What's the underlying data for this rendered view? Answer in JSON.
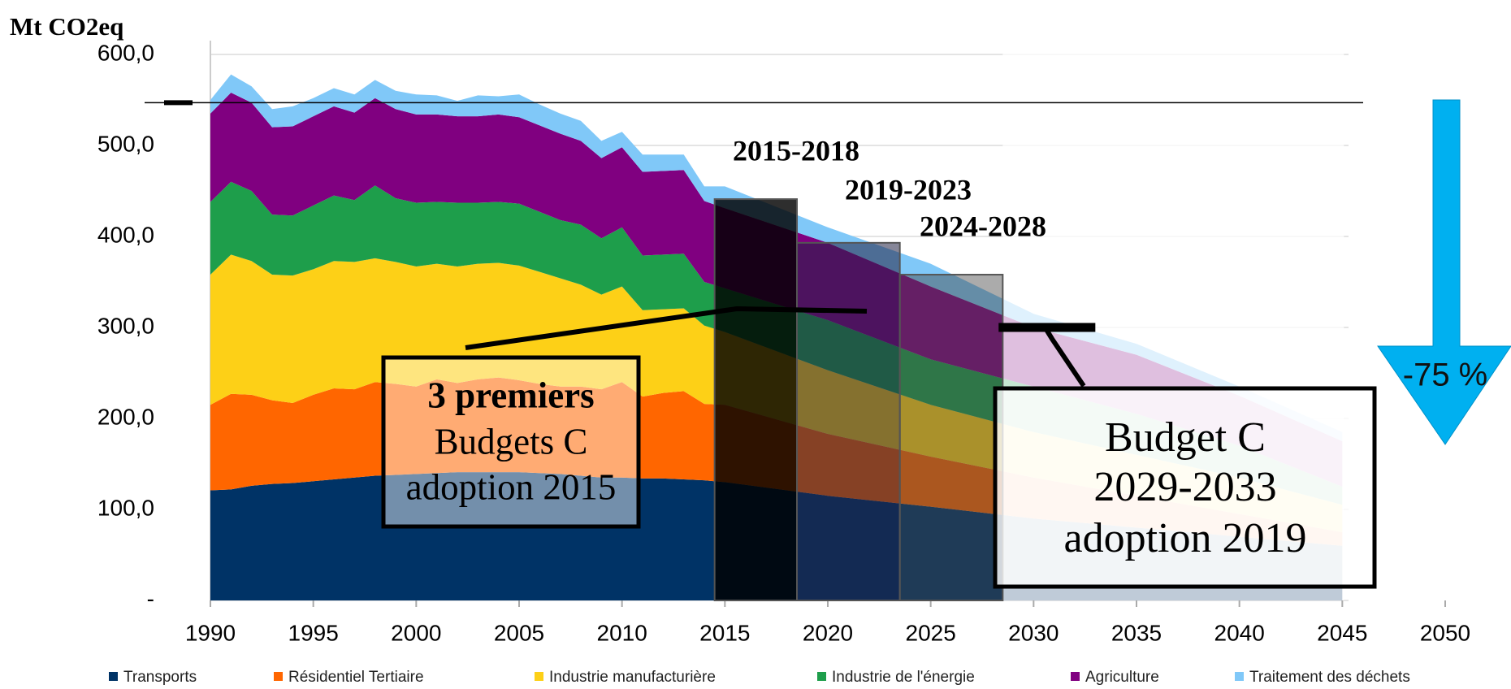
{
  "chart_data": {
    "type": "stacked-area",
    "ylabel": "Mt CO2eq",
    "x": [
      1990,
      1991,
      1992,
      1993,
      1994,
      1995,
      1996,
      1997,
      1998,
      1999,
      2000,
      2001,
      2002,
      2003,
      2004,
      2005,
      2006,
      2007,
      2008,
      2009,
      2010,
      2011,
      2012,
      2013,
      2014,
      2015,
      2020,
      2025,
      2030,
      2035,
      2040,
      2045
    ],
    "series": [
      {
        "name": "Transports",
        "color": "#003366",
        "values": [
          121,
          122,
          126,
          128,
          129,
          131,
          133,
          135,
          137,
          138,
          139,
          140,
          141,
          141,
          141,
          141,
          140,
          139,
          137,
          135,
          135,
          134,
          134,
          133,
          132,
          130,
          115,
          103,
          90,
          80,
          70,
          60
        ]
      },
      {
        "name": "Résidentiel Tertiaire",
        "color": "#ff6600",
        "values": [
          94,
          105,
          100,
          92,
          88,
          95,
          100,
          97,
          103,
          100,
          96,
          103,
          98,
          102,
          104,
          101,
          98,
          96,
          98,
          97,
          105,
          90,
          94,
          97,
          84,
          85,
          68,
          55,
          45,
          35,
          25,
          15
        ]
      },
      {
        "name": "Industrie manufacturière",
        "color": "#fdd017",
        "values": [
          143,
          153,
          147,
          138,
          140,
          138,
          140,
          140,
          136,
          134,
          132,
          127,
          128,
          127,
          126,
          126,
          123,
          119,
          112,
          104,
          105,
          95,
          92,
          91,
          86,
          80,
          70,
          57,
          50,
          45,
          40,
          30
        ]
      },
      {
        "name": "Industrie de l'énergie",
        "color": "#1e9e4b",
        "values": [
          80,
          80,
          77,
          66,
          66,
          70,
          72,
          68,
          80,
          70,
          70,
          68,
          70,
          67,
          67,
          68,
          66,
          64,
          66,
          62,
          65,
          60,
          60,
          60,
          48,
          48,
          55,
          50,
          50,
          45,
          35,
          20
        ]
      },
      {
        "name": "Agriculture",
        "color": "#800080",
        "values": [
          97,
          98,
          97,
          96,
          98,
          98,
          98,
          96,
          96,
          98,
          97,
          96,
          95,
          95,
          96,
          95,
          95,
          95,
          92,
          88,
          88,
          92,
          92,
          92,
          89,
          88,
          85,
          80,
          65,
          65,
          55,
          50
        ]
      },
      {
        "name": "Traitement des déchets",
        "color": "#80c8f8",
        "values": [
          15,
          20,
          18,
          20,
          22,
          20,
          20,
          20,
          20,
          20,
          22,
          21,
          17,
          23,
          20,
          25,
          23,
          22,
          22,
          19,
          17,
          19,
          18,
          17,
          16,
          24,
          17,
          25,
          15,
          12,
          10,
          10
        ]
      }
    ],
    "xlim": [
      1990,
      2050
    ],
    "xticks": [
      1990,
      1995,
      2000,
      2005,
      2010,
      2015,
      2020,
      2025,
      2030,
      2035,
      2040,
      2045,
      2050
    ],
    "ylim": [
      0,
      600
    ],
    "yticks": [
      {
        "value": 0,
        "label": "-"
      },
      {
        "value": 100,
        "label": "100,0"
      },
      {
        "value": 200,
        "label": "200,0"
      },
      {
        "value": 300,
        "label": "300,0"
      },
      {
        "value": 400,
        "label": "400,0"
      },
      {
        "value": 500,
        "label": "500,0"
      },
      {
        "value": 600,
        "label": "600,0"
      }
    ],
    "grid": true,
    "reference_level": 547,
    "budgets": [
      {
        "label": "2015-2018",
        "start": 2014.5,
        "end": 2018.5,
        "value": 441
      },
      {
        "label": "2019-2023",
        "start": 2018.5,
        "end": 2023.5,
        "value": 393
      },
      {
        "label": "2024-2028",
        "start": 2023.5,
        "end": 2028.5,
        "value": 358
      }
    ],
    "next_budget": {
      "start": 2028.3,
      "end": 2033,
      "value": 300
    },
    "annotations": {
      "adopted": [
        "3 premiers",
        "Budgets C",
        "adoption 2015"
      ],
      "next": [
        "Budget C",
        "2029-2033",
        "adoption 2019"
      ],
      "reduction": "-75 %"
    }
  }
}
